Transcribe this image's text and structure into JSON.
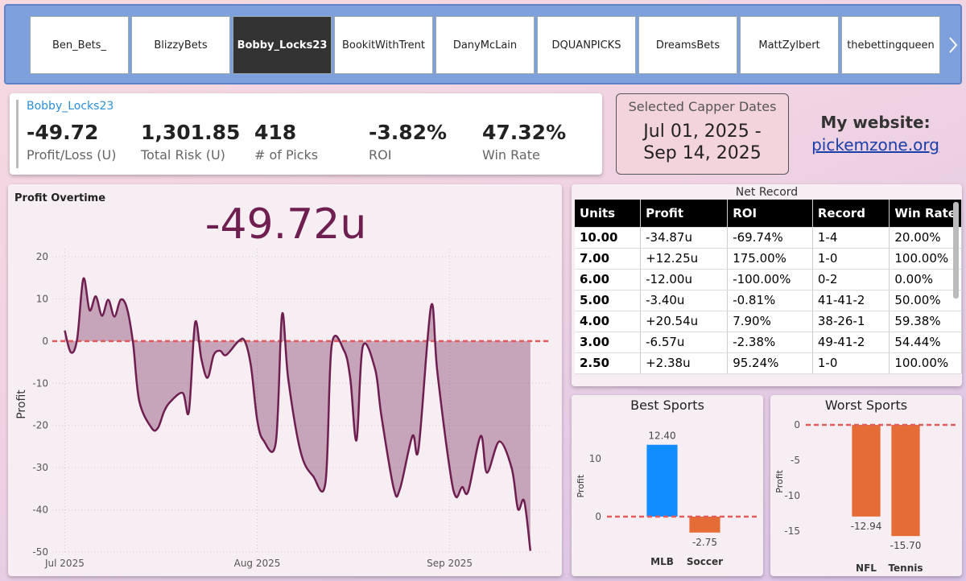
{
  "tabs": {
    "items": [
      "Ben_Bets_",
      "BlizzyBets",
      "Bobby_Locks23",
      "BookitWithTrent",
      "DanyMcLain",
      "DQUANPICKS",
      "DreamsBets",
      "MattZylbert",
      "thebettingqueen"
    ],
    "selected": 2
  },
  "kpi": {
    "name": "Bobby_Locks23",
    "metrics": [
      {
        "value": "-49.72",
        "label": "Profit/Loss (U)"
      },
      {
        "value": "1,301.85",
        "label": "Total Risk (U)"
      },
      {
        "value": "418",
        "label": "# of Picks"
      },
      {
        "value": "-3.82%",
        "label": "ROI"
      },
      {
        "value": "47.32%",
        "label": "Win Rate"
      }
    ]
  },
  "dates": {
    "title": "Selected Capper Dates",
    "lines": [
      "Jul 01, 2025 -",
      "Sep 14, 2025"
    ]
  },
  "website": {
    "label": "My website:",
    "link": "pickemzone.org"
  },
  "chart_data": [
    {
      "type": "area",
      "title": "Profit Overtime",
      "headline": "-49.72u",
      "y_label": "Profit",
      "color": "#6e1e4f",
      "x": [
        0,
        1,
        2,
        3,
        4,
        5,
        6,
        7,
        8,
        9,
        10,
        11,
        12,
        14,
        15,
        16,
        17,
        19,
        20,
        21,
        22,
        23,
        24,
        25,
        26,
        28,
        29,
        30,
        31,
        32,
        34,
        35,
        36,
        38,
        40,
        42,
        43,
        45,
        46,
        47,
        48,
        50,
        51,
        53,
        54,
        56,
        57,
        59,
        60,
        62,
        63,
        64,
        65,
        67,
        68,
        70,
        72,
        73,
        74,
        75
      ],
      "values": [
        2.5,
        -2.7,
        0.5,
        14.8,
        7.3,
        10.6,
        6,
        9.8,
        5.8,
        9.8,
        7.9,
        -0.4,
        -14.2,
        -20.6,
        -20.6,
        -16.7,
        -14.4,
        -12.3,
        -16.7,
        4.4,
        -4.2,
        -8.7,
        -3.3,
        -2.3,
        -3.3,
        0,
        0,
        -6,
        -18.7,
        -23.5,
        -24,
        6.3,
        -9,
        -26.3,
        -32,
        -33.5,
        -1,
        -2.3,
        -9,
        -23.5,
        -1.3,
        -6.7,
        -17.7,
        -35,
        -35,
        -22.5,
        -25.4,
        8.3,
        -7.1,
        -30.2,
        -36.9,
        -34.6,
        -35.6,
        -22.5,
        -31.2,
        -23.8,
        -30.2,
        -39.8,
        -37.9,
        -49.72
      ],
      "xlim": [
        -2,
        78
      ],
      "xticks": [
        {
          "value": 0,
          "label": "Jul 2025"
        },
        {
          "value": 31,
          "label": "Aug 2025"
        },
        {
          "value": 62,
          "label": "Sep 2025"
        }
      ],
      "ylim": [
        -50,
        20
      ],
      "yticks": [
        -50,
        -40,
        -30,
        -20,
        -10,
        0,
        10,
        20
      ],
      "grid": true,
      "reference_line": 0
    },
    {
      "type": "bar",
      "title": "Best Sports",
      "y_label": "Profit",
      "categories": [
        "MLB",
        "Soccer"
      ],
      "values": [
        12.4,
        -2.75
      ],
      "value_labels": [
        "12.40",
        "-2.75"
      ],
      "colors": [
        "#118dff",
        "#e66c37"
      ],
      "ylim": [
        -5,
        15.5
      ],
      "yticks": [
        0,
        10
      ],
      "reference_line": 0
    },
    {
      "type": "bar",
      "title": "Worst Sports",
      "y_label": "Profit",
      "categories": [
        "NFL",
        "Tennis"
      ],
      "values": [
        -12.94,
        -15.7
      ],
      "value_labels": [
        "-12.94",
        "-15.70"
      ],
      "colors": [
        "#e66c37",
        "#e66c37"
      ],
      "ylim": [
        -17.5,
        1.5
      ],
      "yticks": [
        -15,
        -10,
        -5,
        0
      ],
      "reference_line": 0
    }
  ],
  "table": {
    "title": "Net Record",
    "columns": [
      "Units",
      "Profit",
      "ROI",
      "Record",
      "Win Rate"
    ],
    "rows": [
      [
        "10.00",
        "-34.87u",
        "-69.74%",
        "1-4",
        "20.00%"
      ],
      [
        "7.00",
        "+12.25u",
        "175.00%",
        "1-0",
        "100.00%"
      ],
      [
        "6.00",
        "-12.00u",
        "-100.00%",
        "0-2",
        "0.00%"
      ],
      [
        "5.00",
        "-3.40u",
        "-0.81%",
        "41-41-2",
        "50.00%"
      ],
      [
        "4.00",
        "+20.54u",
        "7.90%",
        "38-26-1",
        "59.38%"
      ],
      [
        "3.00",
        "-6.57u",
        "-2.38%",
        "49-41-2",
        "54.44%"
      ],
      [
        "2.50",
        "+2.38u",
        "95.24%",
        "1-0",
        "100.00%"
      ]
    ]
  }
}
